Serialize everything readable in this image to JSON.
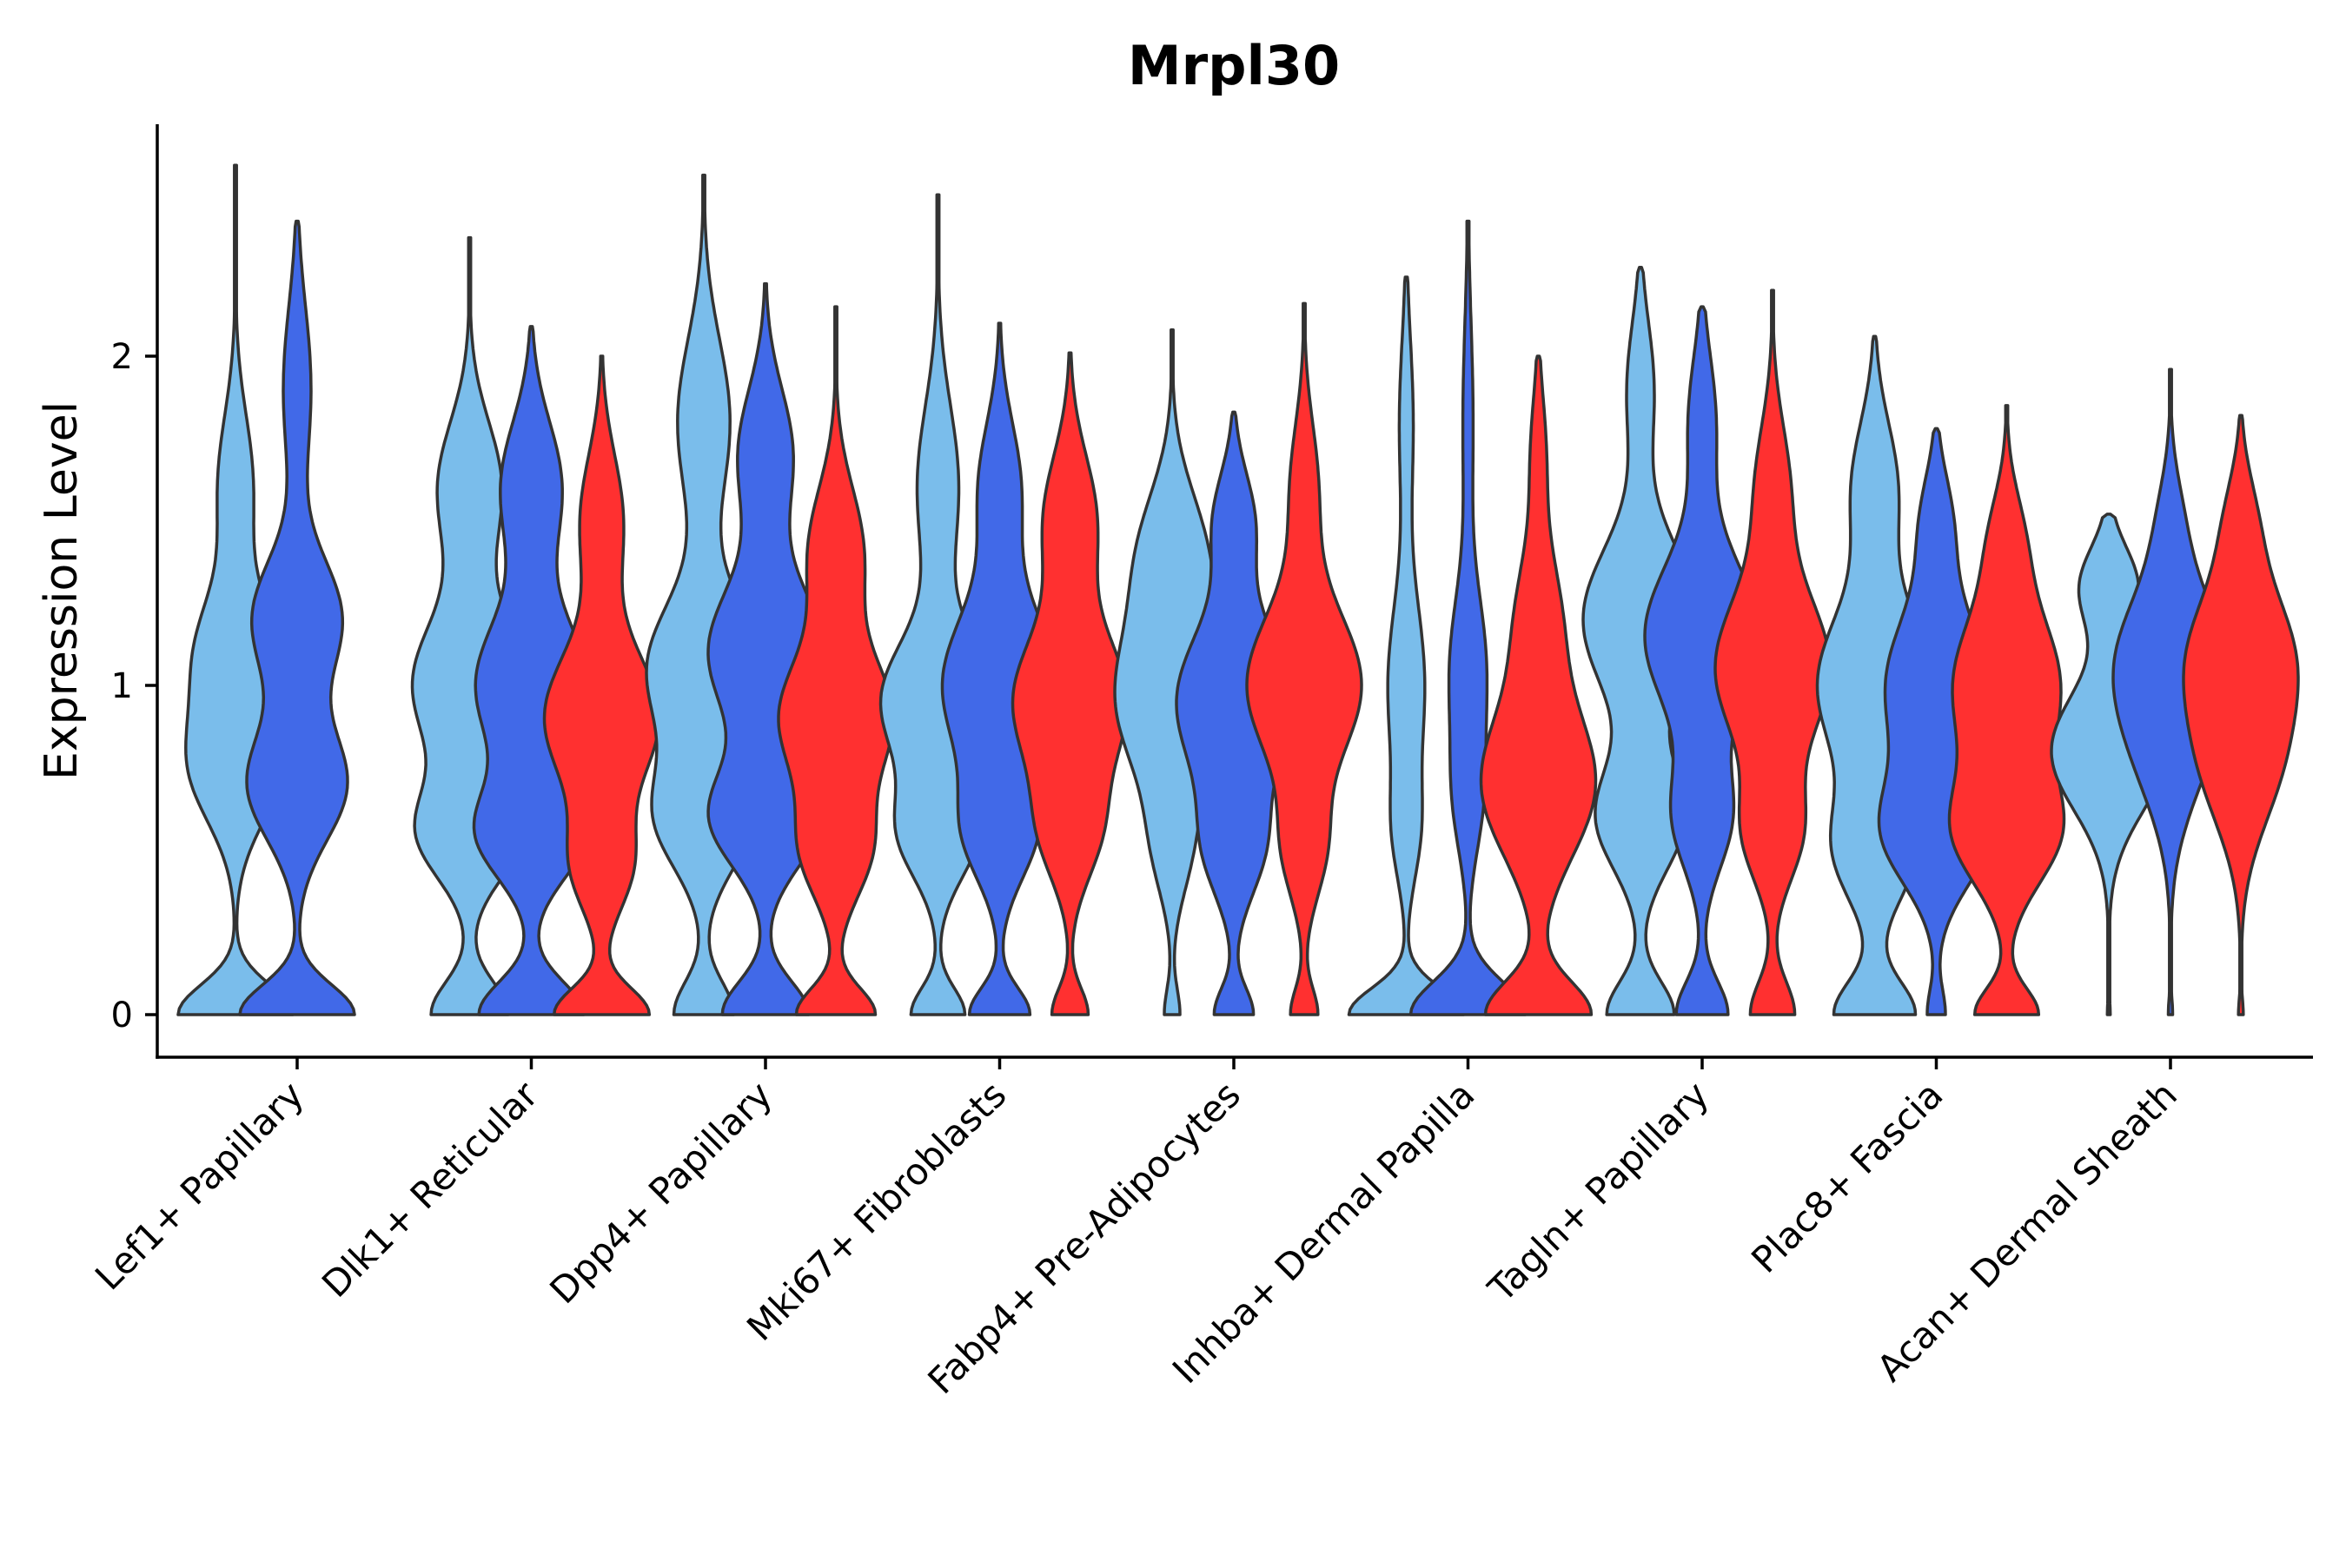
{
  "chart_data": {
    "type": "violin",
    "title": "Mrpl30",
    "xlabel": "",
    "ylabel": "Expression Level",
    "ylim": [
      -0.13,
      2.7
    ],
    "yticks": [
      0,
      1,
      2
    ],
    "series_colors": [
      "#7ABDEB",
      "#4169E8",
      "#FF3030"
    ],
    "categories": [
      "Lef1+ Papillary",
      "Dlk1+ Reticular",
      "Dpp4+ Papillary",
      "Mki67+ Fibroblasts",
      "Fabp4+ Pre-Adipocytes",
      "Inhba+ Dermal Papilla",
      "Tagln+ Papillary",
      "Plac8+ Fascia",
      "Acan+ Dermal Sheath"
    ],
    "violins": [
      {
        "category": 0,
        "series": 0,
        "max": 2.58,
        "modes": [
          [
            0.0,
            0.55,
            0.09
          ],
          [
            0.75,
            0.42,
            0.17
          ],
          [
            1.1,
            0.35,
            0.17
          ],
          [
            1.6,
            0.17,
            0.22
          ]
        ]
      },
      {
        "category": 0,
        "series": 1,
        "max": 2.41,
        "modes": [
          [
            0.0,
            0.58,
            0.09
          ],
          [
            0.7,
            0.5,
            0.17
          ],
          [
            1.2,
            0.45,
            0.18
          ],
          [
            1.9,
            0.14,
            0.25
          ]
        ]
      },
      {
        "category": 1,
        "series": 0,
        "max": 2.36,
        "modes": [
          [
            0.0,
            0.17,
            0.1
          ],
          [
            0.55,
            0.22,
            0.14
          ],
          [
            1.0,
            0.25,
            0.2
          ],
          [
            1.6,
            0.14,
            0.2
          ]
        ]
      },
      {
        "category": 1,
        "series": 1,
        "max": 2.09,
        "modes": [
          [
            0.0,
            0.19,
            0.1
          ],
          [
            0.55,
            0.19,
            0.14
          ],
          [
            1.0,
            0.2,
            0.2
          ],
          [
            1.6,
            0.11,
            0.2
          ]
        ]
      },
      {
        "category": 1,
        "series": 2,
        "max": 2.0,
        "modes": [
          [
            0.0,
            0.2,
            0.08
          ],
          [
            0.45,
            0.12,
            0.14
          ],
          [
            0.9,
            0.24,
            0.2
          ],
          [
            1.5,
            0.09,
            0.2
          ]
        ]
      },
      {
        "category": 2,
        "series": 0,
        "max": 2.55,
        "modes": [
          [
            0.0,
            0.16,
            0.1
          ],
          [
            0.6,
            0.25,
            0.16
          ],
          [
            1.05,
            0.3,
            0.2
          ],
          [
            1.8,
            0.14,
            0.25
          ]
        ]
      },
      {
        "category": 2,
        "series": 1,
        "max": 2.22,
        "modes": [
          [
            0.0,
            0.19,
            0.1
          ],
          [
            0.6,
            0.24,
            0.15
          ],
          [
            1.1,
            0.25,
            0.2
          ],
          [
            1.7,
            0.12,
            0.2
          ]
        ]
      },
      {
        "category": 2,
        "series": 2,
        "max": 2.15,
        "modes": [
          [
            0.0,
            0.2,
            0.08
          ],
          [
            0.5,
            0.17,
            0.15
          ],
          [
            0.9,
            0.28,
            0.18
          ],
          [
            1.4,
            0.14,
            0.2
          ]
        ]
      },
      {
        "category": 3,
        "series": 0,
        "max": 2.49,
        "modes": [
          [
            0.0,
            0.13,
            0.08
          ],
          [
            0.55,
            0.18,
            0.14
          ],
          [
            0.95,
            0.27,
            0.18
          ],
          [
            1.6,
            0.1,
            0.25
          ]
        ]
      },
      {
        "category": 3,
        "series": 1,
        "max": 2.1,
        "modes": [
          [
            0.0,
            0.16,
            0.08
          ],
          [
            0.55,
            0.17,
            0.15
          ],
          [
            1.0,
            0.3,
            0.22
          ],
          [
            1.6,
            0.11,
            0.2
          ]
        ]
      },
      {
        "category": 3,
        "series": 2,
        "max": 2.01,
        "modes": [
          [
            0.0,
            0.11,
            0.08
          ],
          [
            0.55,
            0.16,
            0.15
          ],
          [
            0.95,
            0.34,
            0.2
          ],
          [
            1.5,
            0.16,
            0.2
          ]
        ]
      },
      {
        "category": 4,
        "series": 0,
        "max": 2.08,
        "modes": [
          [
            0.0,
            0.05,
            0.08
          ],
          [
            0.5,
            0.1,
            0.15
          ],
          [
            0.95,
            0.35,
            0.22
          ],
          [
            1.4,
            0.2,
            0.2
          ]
        ]
      },
      {
        "category": 4,
        "series": 1,
        "max": 1.83,
        "modes": [
          [
            0.0,
            0.12,
            0.08
          ],
          [
            0.5,
            0.16,
            0.15
          ],
          [
            0.95,
            0.35,
            0.22
          ],
          [
            1.5,
            0.12,
            0.15
          ]
        ]
      },
      {
        "category": 4,
        "series": 2,
        "max": 2.16,
        "modes": [
          [
            0.0,
            0.11,
            0.08
          ],
          [
            0.5,
            0.16,
            0.15
          ],
          [
            1.0,
            0.46,
            0.22
          ],
          [
            1.6,
            0.11,
            0.2
          ]
        ]
      },
      {
        "category": 5,
        "series": 0,
        "max": 2.24,
        "modes": [
          [
            0.0,
            0.5,
            0.08
          ],
          [
            0.55,
            0.1,
            0.15
          ],
          [
            1.0,
            0.16,
            0.25
          ],
          [
            1.8,
            0.06,
            0.25
          ]
        ]
      },
      {
        "category": 5,
        "series": 1,
        "max": 2.41,
        "modes": [
          [
            0.0,
            0.45,
            0.1
          ],
          [
            0.65,
            0.1,
            0.17
          ],
          [
            1.05,
            0.14,
            0.22
          ],
          [
            1.8,
            0.04,
            0.3
          ]
        ]
      },
      {
        "category": 5,
        "series": 2,
        "max": 2.0,
        "modes": [
          [
            0.0,
            0.42,
            0.1
          ],
          [
            0.7,
            0.45,
            0.22
          ],
          [
            1.2,
            0.17,
            0.2
          ],
          [
            1.7,
            0.06,
            0.18
          ]
        ]
      },
      {
        "category": 6,
        "series": 0,
        "max": 2.27,
        "modes": [
          [
            0.0,
            0.2,
            0.1
          ],
          [
            0.6,
            0.26,
            0.16
          ],
          [
            1.2,
            0.34,
            0.22
          ],
          [
            1.9,
            0.08,
            0.2
          ]
        ]
      },
      {
        "category": 6,
        "series": 1,
        "max": 2.15,
        "modes": [
          [
            0.0,
            0.19,
            0.1
          ],
          [
            0.6,
            0.21,
            0.16
          ],
          [
            1.15,
            0.42,
            0.22
          ],
          [
            1.8,
            0.1,
            0.2
          ]
        ]
      },
      {
        "category": 6,
        "series": 2,
        "max": 2.2,
        "modes": [
          [
            0.0,
            0.16,
            0.1
          ],
          [
            0.55,
            0.2,
            0.15
          ],
          [
            1.05,
            0.41,
            0.22
          ],
          [
            1.6,
            0.12,
            0.2
          ]
        ]
      },
      {
        "category": 7,
        "series": 0,
        "max": 2.06,
        "modes": [
          [
            0.0,
            0.25,
            0.1
          ],
          [
            0.5,
            0.24,
            0.16
          ],
          [
            1.0,
            0.35,
            0.22
          ],
          [
            1.6,
            0.14,
            0.2
          ]
        ]
      },
      {
        "category": 7,
        "series": 1,
        "max": 1.78,
        "modes": [
          [
            0.0,
            0.05,
            0.08
          ],
          [
            0.55,
            0.28,
            0.16
          ],
          [
            1.0,
            0.28,
            0.22
          ],
          [
            1.5,
            0.08,
            0.15
          ]
        ]
      },
      {
        "category": 7,
        "series": 2,
        "max": 1.85,
        "modes": [
          [
            0.0,
            0.18,
            0.08
          ],
          [
            0.55,
            0.28,
            0.16
          ],
          [
            1.0,
            0.3,
            0.22
          ],
          [
            1.45,
            0.08,
            0.15
          ]
        ]
      },
      {
        "category": 8,
        "series": 0,
        "max": 1.52,
        "modes": [
          [
            0.0,
            0.01,
            0.05
          ],
          [
            0.8,
            0.4,
            0.18
          ],
          [
            1.3,
            0.2,
            0.12
          ]
        ]
      },
      {
        "category": 8,
        "series": 1,
        "max": 1.96,
        "modes": [
          [
            0.0,
            0.02,
            0.05
          ],
          [
            0.8,
            0.25,
            0.2
          ],
          [
            1.1,
            0.42,
            0.2
          ],
          [
            1.5,
            0.09,
            0.15
          ]
        ]
      },
      {
        "category": 8,
        "series": 2,
        "max": 1.82,
        "modes": [
          [
            0.0,
            0.02,
            0.05
          ],
          [
            0.75,
            0.28,
            0.2
          ],
          [
            1.1,
            0.4,
            0.2
          ],
          [
            1.5,
            0.11,
            0.15
          ]
        ]
      }
    ]
  }
}
